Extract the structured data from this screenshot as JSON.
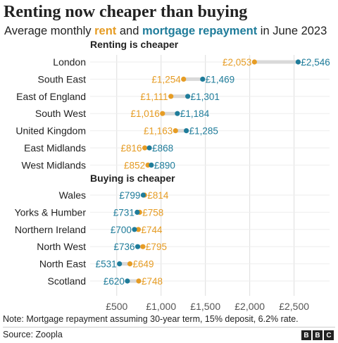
{
  "header": {
    "title": "Renting now cheaper than buying",
    "subtitle_pre": "Average monthly ",
    "subtitle_rent": "rent",
    "subtitle_mid": " and ",
    "subtitle_mortgage": "mortgage repayment",
    "subtitle_post": " in June 2023"
  },
  "colors": {
    "rent": "#e69c24",
    "mortgage": "#1f7c9a",
    "connector": "#d9d9d9",
    "grid": "#dddddd"
  },
  "chart_data": {
    "type": "dumbbell",
    "title": "Renting now cheaper than buying",
    "subtitle": "Average monthly rent and mortgage repayment in June 2023",
    "series": [
      {
        "name": "rent",
        "color": "#e69c24"
      },
      {
        "name": "mortgage repayment",
        "color": "#1f7c9a"
      }
    ],
    "xlim": [
      200,
      2900
    ],
    "xticks": [
      500,
      1000,
      1500,
      2000,
      2500
    ],
    "xtick_labels": [
      "£500",
      "£1,000",
      "£1,500",
      "£2,000",
      "£2,500"
    ],
    "groups": [
      {
        "label": "Renting is cheaper",
        "rows": [
          {
            "region": "London",
            "rent": 2053,
            "mortgage": 2546,
            "rent_label": "£2,053",
            "mortgage_label": "£2,546"
          },
          {
            "region": "South East",
            "rent": 1254,
            "mortgage": 1469,
            "rent_label": "£1,254",
            "mortgage_label": "£1,469"
          },
          {
            "region": "East of England",
            "rent": 1111,
            "mortgage": 1301,
            "rent_label": "£1,111",
            "mortgage_label": "£1,301"
          },
          {
            "region": "South West",
            "rent": 1016,
            "mortgage": 1184,
            "rent_label": "£1,016",
            "mortgage_label": "£1,184"
          },
          {
            "region": "United Kingdom",
            "rent": 1163,
            "mortgage": 1285,
            "rent_label": "£1,163",
            "mortgage_label": "£1,285"
          },
          {
            "region": "East Midlands",
            "rent": 816,
            "mortgage": 868,
            "rent_label": "£816",
            "mortgage_label": "£868"
          },
          {
            "region": "West Midlands",
            "rent": 852,
            "mortgage": 890,
            "rent_label": "£852",
            "mortgage_label": "£890"
          }
        ]
      },
      {
        "label": "Buying is cheaper",
        "rows": [
          {
            "region": "Wales",
            "rent": 814,
            "mortgage": 799,
            "rent_label": "£814",
            "mortgage_label": "£799"
          },
          {
            "region": "Yorks & Humber",
            "rent": 758,
            "mortgage": 731,
            "rent_label": "£758",
            "mortgage_label": "£731"
          },
          {
            "region": "Northern Ireland",
            "rent": 744,
            "mortgage": 700,
            "rent_label": "£744",
            "mortgage_label": "£700"
          },
          {
            "region": "North West",
            "rent": 795,
            "mortgage": 736,
            "rent_label": "£795",
            "mortgage_label": "£736"
          },
          {
            "region": "North East",
            "rent": 649,
            "mortgage": 531,
            "rent_label": "£649",
            "mortgage_label": "£531"
          },
          {
            "region": "Scotland",
            "rent": 748,
            "mortgage": 620,
            "rent_label": "£748",
            "mortgage_label": "£620"
          }
        ]
      }
    ]
  },
  "footer": {
    "note": "Note: Mortgage repayment assuming 30-year term, 15% deposit, 6.2% rate.",
    "source": "Source: Zoopla",
    "logo_letters": [
      "B",
      "B",
      "C"
    ]
  }
}
